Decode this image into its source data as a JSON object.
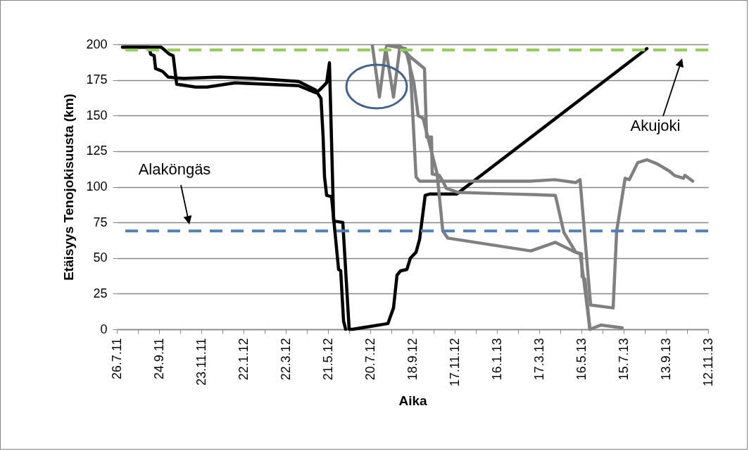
{
  "chart_data": {
    "type": "line",
    "xlabel": "Aika",
    "ylabel": "Etäisyys Tenojokisuusta (km)",
    "xlim": [
      "2011-07-26",
      "2013-11-12"
    ],
    "xticks": [
      {
        "value": "2011-07-26",
        "label": "26.7.11"
      },
      {
        "value": "2011-08-25",
        "label": null
      },
      {
        "value": "2011-09-24",
        "label": "24.9.11"
      },
      {
        "value": "2011-10-24",
        "label": null
      },
      {
        "value": "2011-11-23",
        "label": "23.11.11"
      },
      {
        "value": "2011-12-23",
        "label": null
      },
      {
        "value": "2012-01-22",
        "label": "22.1.12"
      },
      {
        "value": "2012-02-21",
        "label": null
      },
      {
        "value": "2012-03-22",
        "label": "22.3.12"
      },
      {
        "value": "2012-04-21",
        "label": null
      },
      {
        "value": "2012-05-21",
        "label": "21.5.12"
      },
      {
        "value": "2012-06-20",
        "label": null
      },
      {
        "value": "2012-07-20",
        "label": "20.7.12"
      },
      {
        "value": "2012-08-19",
        "label": null
      },
      {
        "value": "2012-09-18",
        "label": "18.9.12"
      },
      {
        "value": "2012-10-18",
        "label": null
      },
      {
        "value": "2012-11-17",
        "label": "17.11.12"
      },
      {
        "value": "2012-12-17",
        "label": null
      },
      {
        "value": "2013-01-16",
        "label": "16.1.13"
      },
      {
        "value": "2013-02-15",
        "label": null
      },
      {
        "value": "2013-03-17",
        "label": "17.3.13"
      },
      {
        "value": "2013-04-16",
        "label": null
      },
      {
        "value": "2013-05-16",
        "label": "16.5.13"
      },
      {
        "value": "2013-06-15",
        "label": null
      },
      {
        "value": "2013-07-15",
        "label": "15.7.13"
      },
      {
        "value": "2013-08-14",
        "label": null
      },
      {
        "value": "2013-09-13",
        "label": "13.9.13"
      },
      {
        "value": "2013-10-13",
        "label": null
      },
      {
        "value": "2013-11-12",
        "label": "12.11.13"
      }
    ],
    "ylim": [
      0,
      200
    ],
    "yticks": [
      0,
      25,
      50,
      75,
      100,
      125,
      150,
      175,
      200
    ],
    "grid": "y",
    "line_style": "solid",
    "series": [
      {
        "color": "#000000",
        "x": [
          "2011-08-03",
          "2011-09-27",
          "2011-10-09",
          "2011-10-14",
          "2011-10-19",
          "2011-11-15",
          "2011-12-01",
          "2012-01-10",
          "2012-04-09",
          "2012-05-04",
          "2012-05-09",
          "2012-05-19",
          "2012-05-23",
          "2012-05-29",
          "2012-06-11",
          "2012-06-20",
          "2012-06-25",
          "2012-08-14",
          "2012-08-22",
          "2012-08-27",
          "2012-09-01",
          "2012-09-10",
          "2012-09-15",
          "2012-09-23",
          "2012-09-28",
          "2012-10-06",
          "2012-10-13",
          "2012-11-20",
          "2013-08-17"
        ],
        "values": [
          198,
          198,
          193,
          192,
          172,
          170,
          170,
          173,
          171,
          166,
          168,
          173,
          187,
          76,
          75,
          0,
          0,
          4,
          15,
          38,
          41,
          42,
          50,
          54,
          63,
          94,
          95,
          95,
          197
        ]
      },
      {
        "color": "#000000",
        "x": [
          "2011-08-03",
          "2011-09-10",
          "2011-09-12",
          "2011-09-17",
          "2011-09-19",
          "2011-09-29",
          "2011-10-07",
          "2011-10-29",
          "2011-12-18",
          "2012-02-06",
          "2012-04-09",
          "2012-05-03",
          "2012-05-11",
          "2012-05-14",
          "2012-05-16",
          "2012-05-19",
          "2012-05-26",
          "2012-06-05",
          "2012-06-08",
          "2012-06-12",
          "2012-06-15"
        ],
        "values": [
          198,
          198,
          193,
          192,
          183,
          181,
          177,
          176,
          177,
          176,
          174,
          168,
          162,
          135,
          107,
          94,
          93,
          42,
          41,
          6,
          0
        ]
      },
      {
        "color": "#808080",
        "x": [
          "2012-07-23",
          "2012-08-02",
          "2012-08-11",
          "2012-08-22",
          "2012-08-31",
          "2012-09-13",
          "2012-09-16",
          "2012-09-23",
          "2012-09-28",
          "2012-10-10",
          "2013-03-05",
          "2013-04-08",
          "2013-05-08",
          "2013-05-14",
          "2013-05-29",
          "2013-06-30",
          "2013-07-05",
          "2013-07-17",
          "2013-07-23",
          "2013-08-04",
          "2013-08-17",
          "2013-09-01",
          "2013-09-18",
          "2013-09-25",
          "2013-10-08",
          "2013-10-10",
          "2013-10-21"
        ],
        "values": [
          199,
          163,
          197,
          163,
          198,
          192,
          173,
          107,
          104,
          104,
          104,
          105,
          103,
          105,
          17,
          15,
          69,
          106,
          105,
          117,
          119,
          116,
          111,
          108,
          106,
          108,
          104
        ]
      },
      {
        "color": "#808080",
        "x": [
          "2012-08-12",
          "2012-08-31",
          "2012-09-13",
          "2012-10-05",
          "2012-10-08",
          "2012-10-15",
          "2012-10-16",
          "2012-10-26",
          "2012-10-31",
          "2012-11-05",
          "2012-11-22",
          "2013-02-03",
          "2013-04-09",
          "2013-04-21",
          "2013-05-08",
          "2013-05-16",
          "2013-05-17",
          "2013-05-21",
          "2013-05-28"
        ],
        "values": [
          199,
          199,
          192,
          183,
          135,
          135,
          109,
          108,
          104,
          99,
          96,
          95,
          94,
          68,
          54,
          53,
          37,
          35,
          0
        ]
      },
      {
        "color": "#808080",
        "x": [
          "2012-08-16",
          "2012-09-08",
          "2012-09-20",
          "2012-09-26",
          "2012-10-03",
          "2012-10-23",
          "2012-10-31",
          "2012-11-07",
          "2013-03-05",
          "2013-04-09",
          "2013-05-08",
          "2013-05-14",
          "2013-05-19",
          "2013-05-28",
          "2013-06-13",
          "2013-07-13"
        ],
        "values": [
          199,
          197,
          173,
          150,
          148,
          109,
          69,
          64,
          55,
          61,
          54,
          53,
          36,
          0,
          3,
          1
        ]
      }
    ],
    "ref_lines": [
      {
        "axis": "y",
        "value": 196,
        "color": "#92d050",
        "line_style": "dashed"
      },
      {
        "axis": "y",
        "value": 69,
        "color": "#4f81bd",
        "line_style": "dashed"
      }
    ],
    "annotations": [
      "Alaköngäs",
      "Akujoki"
    ]
  }
}
